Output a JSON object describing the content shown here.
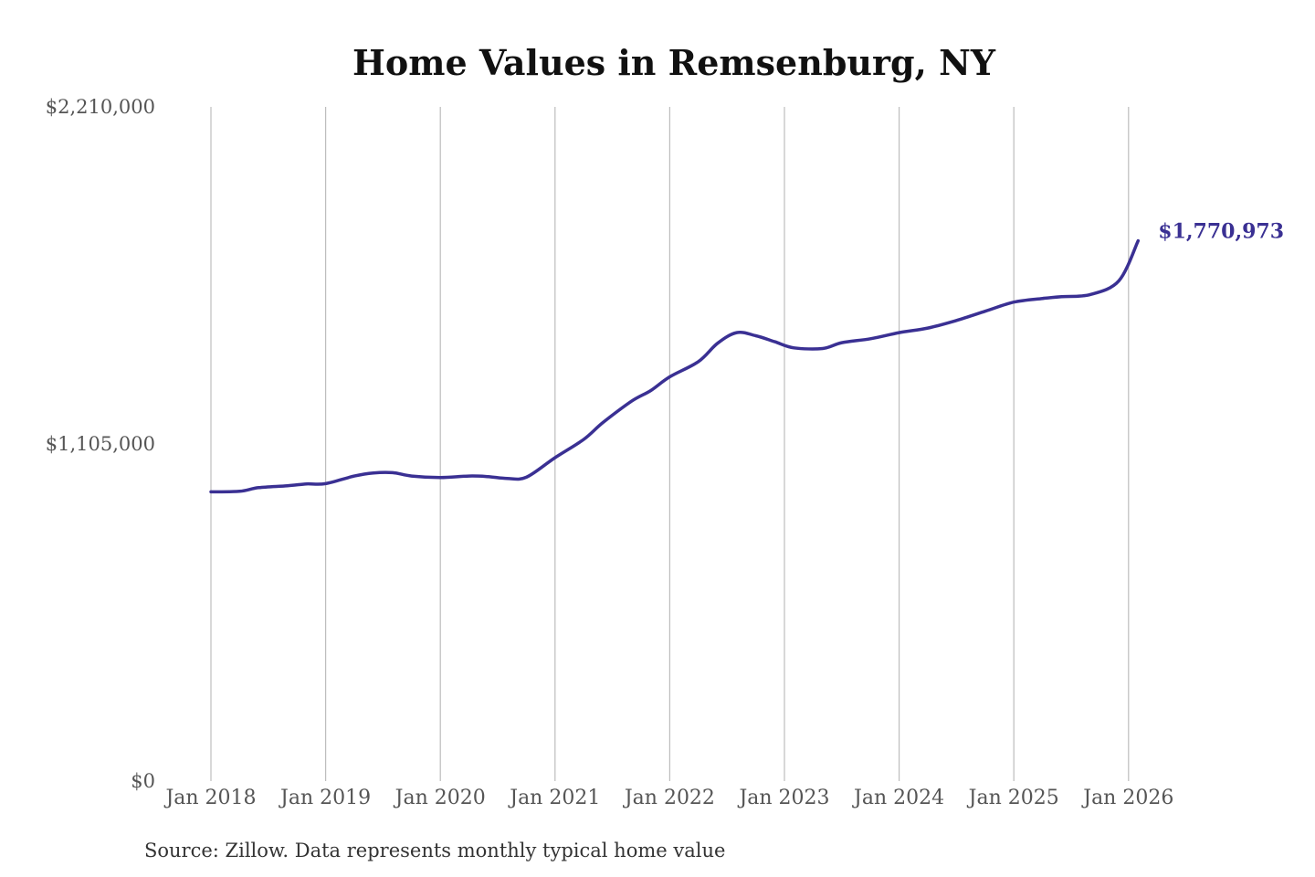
{
  "chart_data": {
    "type": "line",
    "title": "Home Values in Remsenburg, NY",
    "xlabel": "",
    "ylabel": "",
    "ylim": [
      0,
      2210000
    ],
    "yticks": [
      {
        "value": 0,
        "label": "$0"
      },
      {
        "value": 1105000,
        "label": "$1,105,000"
      },
      {
        "value": 2210000,
        "label": "$2,210,000"
      }
    ],
    "xticks": [
      {
        "year": 2018,
        "label": "Jan 2018"
      },
      {
        "year": 2019,
        "label": "Jan 2019"
      },
      {
        "year": 2020,
        "label": "Jan 2020"
      },
      {
        "year": 2021,
        "label": "Jan 2021"
      },
      {
        "year": 2022,
        "label": "Jan 2022"
      },
      {
        "year": 2023,
        "label": "Jan 2023"
      },
      {
        "year": 2024,
        "label": "Jan 2024"
      },
      {
        "year": 2025,
        "label": "Jan 2025"
      },
      {
        "year": 2026,
        "label": "Jan 2026"
      }
    ],
    "grid": "vertical",
    "series": [
      {
        "color": "#3a3093",
        "end_label": "$1,770,973",
        "points": [
          [
            "2018-01",
            948000
          ],
          [
            "2018-04",
            950000
          ],
          [
            "2018-06",
            962000
          ],
          [
            "2018-09",
            968000
          ],
          [
            "2018-11",
            974000
          ],
          [
            "2019-01",
            975000
          ],
          [
            "2019-04",
            1000000
          ],
          [
            "2019-06",
            1010000
          ],
          [
            "2019-08",
            1011000
          ],
          [
            "2019-10",
            1000000
          ],
          [
            "2020-01",
            995000
          ],
          [
            "2020-04",
            1000000
          ],
          [
            "2020-06",
            998000
          ],
          [
            "2020-08",
            992000
          ],
          [
            "2020-10",
            996000
          ],
          [
            "2021-01",
            1060000
          ],
          [
            "2021-04",
            1120000
          ],
          [
            "2021-06",
            1175000
          ],
          [
            "2021-09",
            1245000
          ],
          [
            "2021-11",
            1280000
          ],
          [
            "2022-01",
            1325000
          ],
          [
            "2022-04",
            1375000
          ],
          [
            "2022-06",
            1435000
          ],
          [
            "2022-08",
            1470000
          ],
          [
            "2022-10",
            1460000
          ],
          [
            "2022-12",
            1440000
          ],
          [
            "2023-02",
            1420000
          ],
          [
            "2023-05",
            1418000
          ],
          [
            "2023-07",
            1437000
          ],
          [
            "2023-10",
            1450000
          ],
          [
            "2024-01",
            1470000
          ],
          [
            "2024-04",
            1485000
          ],
          [
            "2024-07",
            1510000
          ],
          [
            "2024-10",
            1540000
          ],
          [
            "2025-01",
            1570000
          ],
          [
            "2025-04",
            1582000
          ],
          [
            "2025-06",
            1588000
          ],
          [
            "2025-09",
            1595000
          ],
          [
            "2025-12",
            1640000
          ],
          [
            "2026-02",
            1770973
          ]
        ]
      }
    ]
  },
  "footer": {
    "source": "Source: Zillow. Data represents monthly typical home value"
  }
}
